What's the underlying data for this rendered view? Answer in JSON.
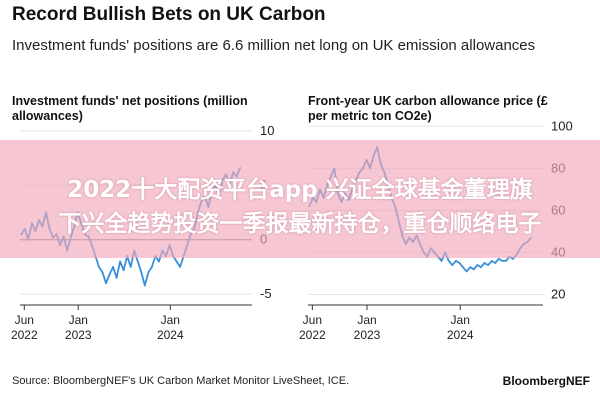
{
  "header": {
    "title": "Record Bullish Bets on UK Carbon",
    "subtitle": "Investment funds' positions are 6.6 million net long on UK emission allowances"
  },
  "chart_data": [
    {
      "type": "line",
      "title": "Investment funds' net positions (million allowances)",
      "y_ticks": [
        "10",
        "5",
        "0",
        "-5"
      ],
      "ylim": [
        -6,
        11
      ],
      "y_axis_side": "right",
      "zero_line": true,
      "x_ticks": [
        {
          "label": "Jun 2022",
          "date": "2022-06-01"
        },
        {
          "label": "Jan 2023",
          "date": "2023-01-01"
        },
        {
          "label": "Jan 2024",
          "date": "2024-01-01"
        }
      ],
      "xlim": [
        "2022-05-15",
        "2024-11-20"
      ],
      "color": "#3a8fd9",
      "points": [
        [
          "2022-05-20",
          0.5
        ],
        [
          "2022-06-03",
          1.0
        ],
        [
          "2022-06-17",
          0.0
        ],
        [
          "2022-07-01",
          1.5
        ],
        [
          "2022-07-15",
          0.8
        ],
        [
          "2022-07-29",
          1.8
        ],
        [
          "2022-08-12",
          1.2
        ],
        [
          "2022-08-26",
          2.5
        ],
        [
          "2022-09-09",
          1.0
        ],
        [
          "2022-09-23",
          0.2
        ],
        [
          "2022-10-07",
          0.5
        ],
        [
          "2022-10-21",
          -0.5
        ],
        [
          "2022-11-04",
          0.3
        ],
        [
          "2022-11-18",
          -1.0
        ],
        [
          "2022-12-02",
          0.2
        ],
        [
          "2022-12-16",
          1.2
        ],
        [
          "2022-12-30",
          2.5
        ],
        [
          "2023-01-13",
          1.5
        ],
        [
          "2023-01-27",
          0.5
        ],
        [
          "2023-02-10",
          0.3
        ],
        [
          "2023-02-24",
          -0.5
        ],
        [
          "2023-03-10",
          -1.5
        ],
        [
          "2023-03-24",
          -2.5
        ],
        [
          "2023-04-07",
          -3.0
        ],
        [
          "2023-04-21",
          -4.0
        ],
        [
          "2023-05-05",
          -3.2
        ],
        [
          "2023-05-19",
          -2.5
        ],
        [
          "2023-06-02",
          -3.5
        ],
        [
          "2023-06-16",
          -2.0
        ],
        [
          "2023-06-30",
          -2.8
        ],
        [
          "2023-07-14",
          -1.5
        ],
        [
          "2023-07-28",
          -2.5
        ],
        [
          "2023-08-11",
          -1.0
        ],
        [
          "2023-08-25",
          -2.0
        ],
        [
          "2023-09-08",
          -3.0
        ],
        [
          "2023-09-22",
          -4.2
        ],
        [
          "2023-10-06",
          -3.0
        ],
        [
          "2023-10-20",
          -2.5
        ],
        [
          "2023-11-03",
          -1.5
        ],
        [
          "2023-11-17",
          -2.0
        ],
        [
          "2023-12-01",
          -1.0
        ],
        [
          "2023-12-15",
          -1.5
        ],
        [
          "2023-12-29",
          -0.5
        ],
        [
          "2024-01-12",
          -1.5
        ],
        [
          "2024-01-26",
          -2.0
        ],
        [
          "2024-02-09",
          -2.5
        ],
        [
          "2024-02-23",
          -1.5
        ],
        [
          "2024-03-08",
          -0.5
        ],
        [
          "2024-03-22",
          0.5
        ],
        [
          "2024-04-05",
          1.0
        ],
        [
          "2024-04-19",
          2.5
        ],
        [
          "2024-05-03",
          3.5
        ],
        [
          "2024-05-17",
          4.0
        ],
        [
          "2024-05-31",
          3.0
        ],
        [
          "2024-06-14",
          4.5
        ],
        [
          "2024-06-28",
          5.0
        ],
        [
          "2024-07-12",
          4.0
        ],
        [
          "2024-07-26",
          5.5
        ],
        [
          "2024-08-09",
          6.0
        ],
        [
          "2024-08-23",
          5.0
        ],
        [
          "2024-09-06",
          6.2
        ],
        [
          "2024-09-20",
          5.8
        ],
        [
          "2024-10-04",
          6.6
        ]
      ]
    },
    {
      "type": "line",
      "title": "Front-year UK carbon allowance price (£ per metric ton CO2e)",
      "y_ticks": [
        "100",
        "80",
        "60",
        "40",
        "20"
      ],
      "ylim": [
        15,
        103
      ],
      "y_axis_side": "right",
      "x_ticks": [
        {
          "label": "Jun 2022",
          "date": "2022-06-01"
        },
        {
          "label": "Jan 2023",
          "date": "2023-01-01"
        },
        {
          "label": "Jan 2024",
          "date": "2024-01-01"
        }
      ],
      "xlim": [
        "2022-05-15",
        "2024-11-20"
      ],
      "color": "#3a8fd9",
      "points": [
        [
          "2022-05-20",
          62
        ],
        [
          "2022-06-03",
          66
        ],
        [
          "2022-06-17",
          64
        ],
        [
          "2022-07-01",
          70
        ],
        [
          "2022-07-15",
          66
        ],
        [
          "2022-07-29",
          72
        ],
        [
          "2022-08-12",
          76
        ],
        [
          "2022-08-26",
          80
        ],
        [
          "2022-09-09",
          68
        ],
        [
          "2022-09-23",
          64
        ],
        [
          "2022-10-07",
          68
        ],
        [
          "2022-10-21",
          65
        ],
        [
          "2022-11-04",
          70
        ],
        [
          "2022-11-18",
          74
        ],
        [
          "2022-12-02",
          78
        ],
        [
          "2022-12-16",
          80
        ],
        [
          "2022-12-30",
          84
        ],
        [
          "2023-01-13",
          80
        ],
        [
          "2023-01-27",
          86
        ],
        [
          "2023-02-10",
          90
        ],
        [
          "2023-02-24",
          82
        ],
        [
          "2023-03-10",
          78
        ],
        [
          "2023-03-24",
          72
        ],
        [
          "2023-04-07",
          66
        ],
        [
          "2023-04-21",
          62
        ],
        [
          "2023-05-05",
          55
        ],
        [
          "2023-05-19",
          48
        ],
        [
          "2023-06-02",
          44
        ],
        [
          "2023-06-16",
          47
        ],
        [
          "2023-06-30",
          45
        ],
        [
          "2023-07-14",
          48
        ],
        [
          "2023-07-28",
          44
        ],
        [
          "2023-08-11",
          40
        ],
        [
          "2023-08-25",
          38
        ],
        [
          "2023-09-08",
          42
        ],
        [
          "2023-09-22",
          40
        ],
        [
          "2023-10-06",
          38
        ],
        [
          "2023-10-20",
          36
        ],
        [
          "2023-11-03",
          40
        ],
        [
          "2023-11-17",
          36
        ],
        [
          "2023-12-01",
          34
        ],
        [
          "2023-12-15",
          36
        ],
        [
          "2023-12-29",
          35
        ],
        [
          "2024-01-12",
          33
        ],
        [
          "2024-01-26",
          31
        ],
        [
          "2024-02-09",
          33
        ],
        [
          "2024-02-23",
          32
        ],
        [
          "2024-03-08",
          34
        ],
        [
          "2024-03-22",
          33
        ],
        [
          "2024-04-05",
          35
        ],
        [
          "2024-04-19",
          34
        ],
        [
          "2024-05-03",
          36
        ],
        [
          "2024-05-17",
          35
        ],
        [
          "2024-05-31",
          37
        ],
        [
          "2024-06-14",
          36
        ],
        [
          "2024-06-28",
          36
        ],
        [
          "2024-07-12",
          38
        ],
        [
          "2024-07-26",
          37
        ],
        [
          "2024-08-09",
          39
        ],
        [
          "2024-08-23",
          42
        ],
        [
          "2024-09-06",
          44
        ],
        [
          "2024-09-20",
          45
        ],
        [
          "2024-10-04",
          47
        ]
      ]
    }
  ],
  "overlay": {
    "line1": "2022十大配资平台app 兴证全球基金董理旗",
    "line2": "下兴全趋势投资一季报最新持仓，重仓顺络电子"
  },
  "footer": {
    "source": "Source: BloombergNEF's UK Carbon Market Monitor LiveSheet, ICE.",
    "brand": "BloombergNEF"
  }
}
